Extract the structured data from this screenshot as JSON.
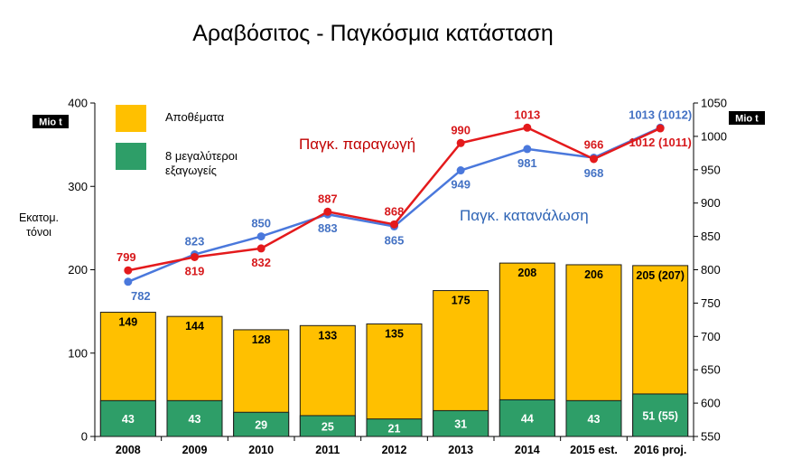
{
  "title": "Αραβόσιτος  -   Παγκόσμια κατάσταση",
  "colors": {
    "stocks": "#ffc000",
    "exporters": "#2e9e68",
    "production": "#e41a1c",
    "consumption": "#4a78dc"
  },
  "legend": {
    "stocks_label": "Αποθέματα",
    "exporters_label_line1": "8 μεγαλύτεροι",
    "exporters_label_line2": "εξαγωγείς"
  },
  "left_axis": {
    "title_line1": "Εκατομ.",
    "title_line2": "τόνοι",
    "unit_box": "Mio t",
    "ticks": [
      "0",
      "100",
      "200",
      "300",
      "400"
    ]
  },
  "right_axis": {
    "unit_box": "Mio t",
    "ticks": [
      "550",
      "600",
      "650",
      "700",
      "750",
      "800",
      "850",
      "900",
      "950",
      "1000",
      "1050"
    ]
  },
  "series_names": {
    "production": "Παγκ. παραγωγή",
    "consumption": "Παγκ. κατανάλωση"
  },
  "chart_data": {
    "type": "bar",
    "title": "Αραβόσιτος  -   Παγκόσμια κατάσταση",
    "categories": [
      "2008",
      "2009",
      "2010",
      "2011",
      "2012",
      "2013",
      "2014",
      "2015 est.",
      "2016 proj."
    ],
    "left_axis": {
      "ylabel": "Εκατομ. τόνοι",
      "unit": "Mio t",
      "ylim": [
        0,
        400
      ]
    },
    "right_axis": {
      "unit": "Mio t",
      "ylim": [
        550,
        1050
      ]
    },
    "series": [
      {
        "name": "Αποθέματα",
        "type": "bar",
        "axis": "left",
        "values": [
          149,
          144,
          128,
          133,
          135,
          175,
          208,
          206,
          205
        ],
        "labels": [
          "149",
          "144",
          "128",
          "133",
          "135",
          "175",
          "208",
          "206",
          "205 (207)"
        ]
      },
      {
        "name": "8 μεγαλύτεροι εξαγωγείς",
        "type": "bar",
        "axis": "left",
        "values": [
          43,
          43,
          29,
          25,
          21,
          31,
          44,
          43,
          51
        ],
        "labels": [
          "43",
          "43",
          "29",
          "25",
          "21",
          "31",
          "44",
          "43",
          "51 (55)"
        ]
      },
      {
        "name": "Παγκ. παραγωγή",
        "type": "line",
        "axis": "right",
        "values": [
          799,
          819,
          832,
          887,
          868,
          990,
          1013,
          966,
          1012
        ],
        "labels": [
          "799",
          "819",
          "832",
          "887",
          "868",
          "990",
          "1013",
          "966",
          "1012 (1011)"
        ]
      },
      {
        "name": "Παγκ. κατανάλωση",
        "type": "line",
        "axis": "right",
        "values": [
          782,
          823,
          850,
          883,
          865,
          949,
          981,
          968,
          1013
        ],
        "labels": [
          "782",
          "823",
          "850",
          "883",
          "865",
          "949",
          "981",
          "968",
          "1013 (1012)"
        ]
      }
    ],
    "legend": "top-left",
    "grid": false
  }
}
